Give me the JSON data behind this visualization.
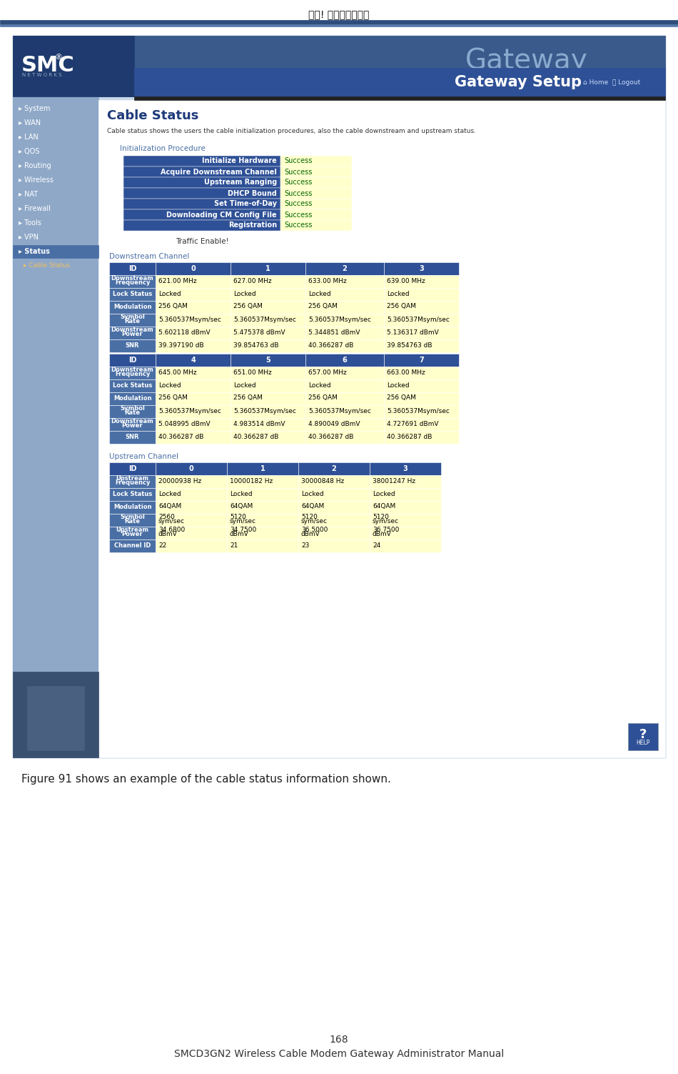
{
  "header_text": "錯誤! 尚未定義樣式。",
  "footer_page": "168",
  "footer_text": "SMCD3GN2 Wireless Cable Modem Gateway Administrator Manual",
  "caption": "Figure 91 shows an example of the cable status information shown.",
  "bg_color": "#ffffff",
  "nav_bg": "#8fa8c8",
  "nav_items": [
    "System",
    "WAN",
    "LAN",
    "QOS",
    "Routing",
    "Wireless",
    "NAT",
    "Firewall",
    "Tools",
    "VPN",
    "Status",
    "Cable Status"
  ],
  "page_title": "Cable Status",
  "page_desc": "Cable status shows the users the cable initialization procedures, also the cable downstream and upstream status.",
  "init_section_title": "Initialization Procedure",
  "init_rows": [
    [
      "Initialize Hardware",
      "Success"
    ],
    [
      "Acquire Downstream Channel",
      "Success"
    ],
    [
      "Upstream Ranging",
      "Success"
    ],
    [
      "DHCP Bound",
      "Success"
    ],
    [
      "Set Time-of-Day",
      "Success"
    ],
    [
      "Downloading CM Config File",
      "Success"
    ],
    [
      "Registration",
      "Success"
    ]
  ],
  "traffic_label": "Traffic Enable!",
  "downstream_title": "Downstream Channel",
  "downstream_header_row1": [
    "ID",
    "0",
    "1",
    "2",
    "3"
  ],
  "downstream_rows1": [
    [
      "Downstream\nFrequency",
      "621.00 MHz",
      "627.00 MHz",
      "633.00 MHz",
      "639.00 MHz"
    ],
    [
      "Lock Status",
      "Locked",
      "Locked",
      "Locked",
      "Locked"
    ],
    [
      "Modulation",
      "256 QAM",
      "256 QAM",
      "256 QAM",
      "256 QAM"
    ],
    [
      "Symbol\nRate",
      "5.360537Msym/sec",
      "5.360537Msym/sec",
      "5.360537Msym/sec",
      "5.360537Msym/sec"
    ],
    [
      "Downstream\nPower",
      "5.602118 dBmV",
      "5.475378 dBmV",
      "5.344851 dBmV",
      "5.136317 dBmV"
    ],
    [
      "SNR",
      "39.397190 dB",
      "39.854763 dB",
      "40.366287 dB",
      "39.854763 dB"
    ]
  ],
  "downstream_header_row2": [
    "ID",
    "4",
    "5",
    "6",
    "7"
  ],
  "downstream_rows2": [
    [
      "Downstream\nFrequency",
      "645.00 MHz",
      "651.00 MHz",
      "657.00 MHz",
      "663.00 MHz"
    ],
    [
      "Lock Status",
      "Locked",
      "Locked",
      "Locked",
      "Locked"
    ],
    [
      "Modulation",
      "256 QAM",
      "256 QAM",
      "256 QAM",
      "256 QAM"
    ],
    [
      "Symbol\nRate",
      "5.360537Msym/sec",
      "5.360537Msym/sec",
      "5.360537Msym/sec",
      "5.360537Msym/sec"
    ],
    [
      "Downstream\nPower",
      "5.048995 dBmV",
      "4.983514 dBmV",
      "4.890049 dBmV",
      "4.727691 dBmV"
    ],
    [
      "SNR",
      "40.366287 dB",
      "40.366287 dB",
      "40.366287 dB",
      "40.366287 dB"
    ]
  ],
  "upstream_title": "Upstream Channel",
  "upstream_header_row": [
    "ID",
    "0",
    "1",
    "2",
    "3"
  ],
  "upstream_rows": [
    [
      "Upstream\nFrequency",
      "20000938 Hz",
      "10000182 Hz",
      "30000848 Hz",
      "38001247 Hz"
    ],
    [
      "Lock Status",
      "Locked",
      "Locked",
      "Locked",
      "Locked"
    ],
    [
      "Modulation",
      "64QAM",
      "64QAM",
      "64QAM",
      "64QAM"
    ],
    [
      "Symbol\nRate",
      "2560\nsym/sec",
      "5120\nsym/sec",
      "5120\nsym/sec",
      "5120\nsym/sec"
    ],
    [
      "Upstream\nPower",
      "34.6800\ndBmV",
      "34.7500\ndBmV",
      "36.5000\ndBmV",
      "36.7500\ndBmV"
    ],
    [
      "Channel ID",
      "22",
      "21",
      "23",
      "24"
    ]
  ],
  "table_header_bg": "#2e5096",
  "table_header_fg": "#ffffff",
  "table_label_bg": "#4a6fa5",
  "table_label_fg": "#ffffff",
  "table_data_bg": "#ffffcc",
  "table_data_fg": "#000000",
  "init_label_bg": "#2e5096",
  "init_label_fg": "#ffffff",
  "init_data_bg": "#ffffcc",
  "init_data_fg": "#006600",
  "section_title_fg": "#4a6fa5",
  "gateway_text": "Gateway Setup",
  "help_btn_color": "#2e5096",
  "img_border_color": "#7a9cc0",
  "header_bar_dark": "#1e3a6e",
  "header_bar_mid": "#3a5a8c",
  "nav_selected_bg": "#4a6fa5",
  "nav_text_color": "#ffffff",
  "cable_status_color": "#f0c060",
  "content_bg": "#dce8f0",
  "inner_content_bg": "#ffffff",
  "black_bar": "#222222",
  "smc_bg": "#1e3c6e",
  "gateway_watermark": "#8aabcf",
  "gateway_setup_bg": "#2e5096",
  "img_outer_bg": "#c8d8e8"
}
